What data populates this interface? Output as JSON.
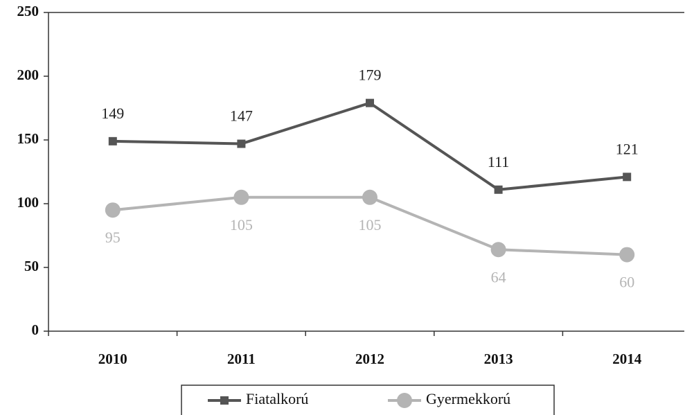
{
  "chart_data": {
    "type": "line",
    "categories": [
      "2010",
      "2011",
      "2012",
      "2013",
      "2014"
    ],
    "series": [
      {
        "name": "Fiatalkorú",
        "color": "#555555",
        "label_color": "#222222",
        "marker": "square",
        "values": [
          149,
          147,
          179,
          111,
          121
        ]
      },
      {
        "name": "Gyermekkorú",
        "color": "#b4b4b4",
        "label_color": "#b4b4b4",
        "marker": "circle",
        "values": [
          95,
          105,
          105,
          64,
          60
        ]
      }
    ],
    "ylim": [
      0,
      250
    ],
    "yticks": [
      0,
      50,
      100,
      150,
      200,
      250
    ],
    "grid": false
  }
}
